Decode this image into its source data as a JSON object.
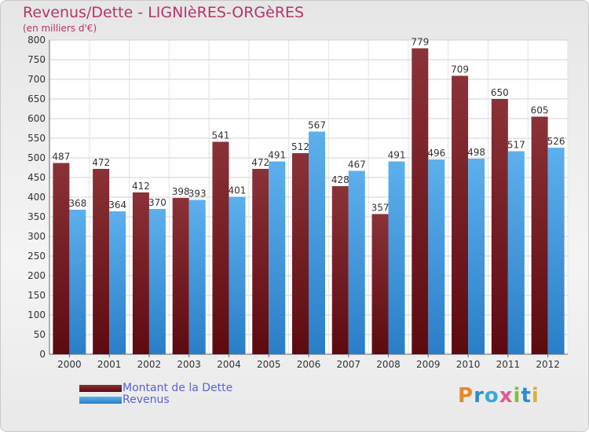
{
  "chart_data": {
    "type": "bar",
    "title": "Revenus/Dette - LIGNIèRES-ORGèRES",
    "subtitle": "(en milliers d'€)",
    "categories": [
      "2000",
      "2001",
      "2002",
      "2003",
      "2004",
      "2005",
      "2006",
      "2007",
      "2008",
      "2009",
      "2010",
      "2011",
      "2012"
    ],
    "series": [
      {
        "name": "Montant de la Dette",
        "color": "#7a1e24",
        "values": [
          487,
          472,
          412,
          398,
          541,
          472,
          512,
          428,
          357,
          779,
          709,
          650,
          605
        ]
      },
      {
        "name": "Revenus",
        "color": "#4a9fe0",
        "values": [
          368,
          364,
          370,
          393,
          401,
          491,
          567,
          467,
          491,
          496,
          498,
          517,
          526
        ]
      }
    ],
    "ylim": [
      0,
      800
    ],
    "yticks": [
      0,
      50,
      100,
      150,
      200,
      250,
      300,
      350,
      400,
      450,
      500,
      550,
      600,
      650,
      700,
      750,
      800
    ],
    "grid": true,
    "legend_position": "bottom-left"
  },
  "logo": {
    "letters": [
      "P",
      "r",
      "o",
      "x",
      "i",
      "t",
      "i"
    ]
  }
}
